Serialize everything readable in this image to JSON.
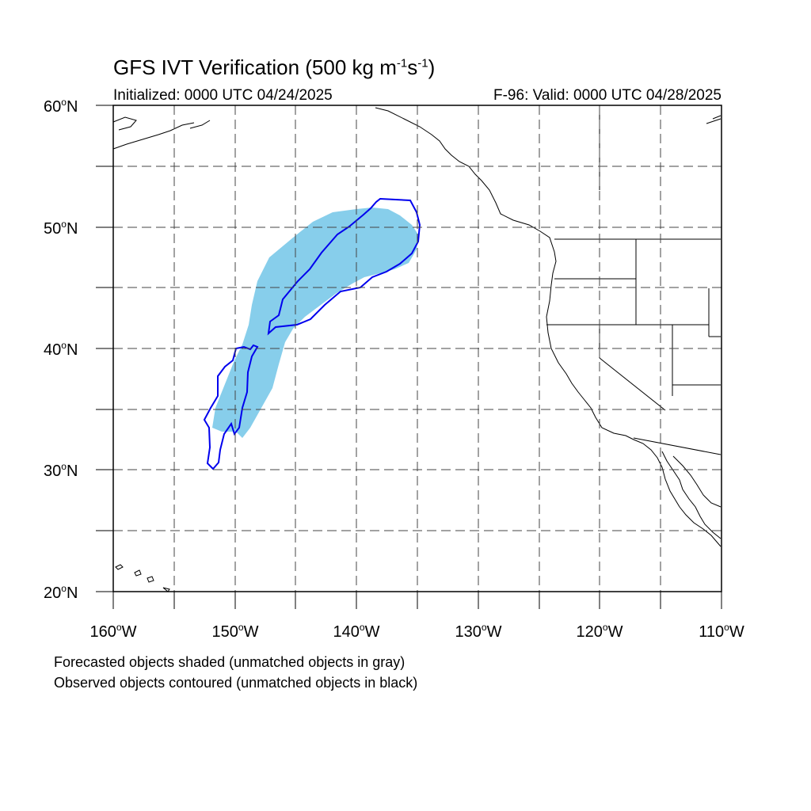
{
  "map": {
    "title": {
      "main": "GFS IVT Verification (500 kg m",
      "sup1": "-1",
      "mid": "s",
      "sup2": "-1",
      "end": ")"
    },
    "initialized": "Initialized: 0000 UTC 04/24/2025",
    "valid": "F-96: Valid: 0000 UTC 04/28/2025",
    "lat_labels": [
      "60",
      "50",
      "40",
      "30",
      "20"
    ],
    "lat_suffix": "N",
    "lon_labels": [
      "160",
      "150",
      "140",
      "130",
      "120",
      "110"
    ],
    "lon_suffix": "W",
    "footnotes": [
      "Forecasted objects shaded (unmatched objects in gray)",
      "Observed objects contoured (unmatched objects in black)"
    ],
    "extent": {
      "lon_min": -160,
      "lon_max": -110,
      "lat_min": 20,
      "lat_max": 60
    },
    "colors": {
      "forecast_fill": "#87ceeb",
      "observed_contour": "#0000ee",
      "coastline": "#000000",
      "grid": "#444444"
    }
  }
}
